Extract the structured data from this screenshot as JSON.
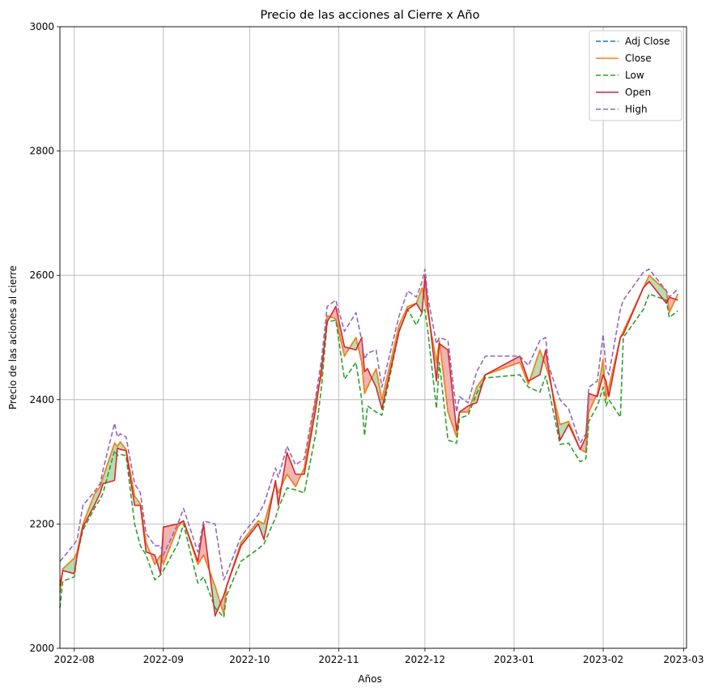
{
  "chart_data": {
    "type": "line",
    "title": "Precio de las acciones al Cierre x Año",
    "xlabel": "Años",
    "ylabel": "Precio de las aciones al cierre",
    "ylim": [
      2000,
      3000
    ],
    "xlim": [
      "2022-07-27",
      "2023-03-02"
    ],
    "yticks": [
      2000,
      2200,
      2400,
      2600,
      2800,
      3000
    ],
    "xticks": [
      "2022-08",
      "2022-09",
      "2022-10",
      "2022-11",
      "2022-12",
      "2023-01",
      "2023-02",
      "2023-03"
    ],
    "xtick_dates": [
      "2022-08-01",
      "2022-09-01",
      "2022-10-01",
      "2022-11-01",
      "2022-12-01",
      "2023-01-01",
      "2023-02-01",
      "2023-03-01"
    ],
    "grid": true,
    "legend_position": "top-right",
    "fill_between": {
      "between": [
        "Close",
        "Open"
      ],
      "up_color": "#2ca02c",
      "down_color": "#d62728"
    },
    "dates": [
      "2022-07-27",
      "2022-07-28",
      "2022-08-01",
      "2022-08-02",
      "2022-08-04",
      "2022-08-08",
      "2022-08-10",
      "2022-08-11",
      "2022-08-15",
      "2022-08-16",
      "2022-08-17",
      "2022-08-19",
      "2022-08-22",
      "2022-08-24",
      "2022-08-26",
      "2022-08-29",
      "2022-08-31",
      "2022-09-01",
      "2022-09-06",
      "2022-09-08",
      "2022-09-13",
      "2022-09-15",
      "2022-09-19",
      "2022-09-22",
      "2022-09-23",
      "2022-09-28",
      "2022-10-04",
      "2022-10-06",
      "2022-10-10",
      "2022-10-11",
      "2022-10-14",
      "2022-10-17",
      "2022-10-20",
      "2022-10-24",
      "2022-10-26",
      "2022-10-28",
      "2022-10-31",
      "2022-11-03",
      "2022-11-07",
      "2022-11-09",
      "2022-11-10",
      "2022-11-11",
      "2022-11-14",
      "2022-11-16",
      "2022-11-22",
      "2022-11-25",
      "2022-11-28",
      "2022-11-30",
      "2022-12-01",
      "2022-12-02",
      "2022-12-05",
      "2022-12-06",
      "2022-12-09",
      "2022-12-12",
      "2022-12-13",
      "2022-12-16",
      "2022-12-19",
      "2022-12-22",
      "2023-01-03",
      "2023-01-06",
      "2023-01-10",
      "2023-01-12",
      "2023-01-13",
      "2023-01-17",
      "2023-01-20",
      "2023-01-24",
      "2023-01-26",
      "2023-01-27",
      "2023-01-30",
      "2023-02-01",
      "2023-02-02",
      "2023-02-03",
      "2023-02-07",
      "2023-02-08",
      "2023-02-15",
      "2023-02-17",
      "2023-02-23",
      "2023-02-24",
      "2023-02-27"
    ],
    "series": [
      {
        "name": "Adj Close",
        "color": "#1f77b4",
        "dashed": true,
        "values": [
          2090,
          2128,
          2145,
          2155,
          2200,
          2248,
          2260,
          2275,
          2330,
          2325,
          2332,
          2320,
          2245,
          2232,
          2170,
          2135,
          2150,
          2135,
          2195,
          2205,
          2135,
          2150,
          2100,
          2055,
          2100,
          2170,
          2205,
          2200,
          2265,
          2250,
          2280,
          2260,
          2290,
          2400,
          2440,
          2535,
          2530,
          2470,
          2500,
          2460,
          2410,
          2420,
          2450,
          2400,
          2520,
          2550,
          2555,
          2580,
          2560,
          2540,
          2460,
          2495,
          2380,
          2340,
          2380,
          2380,
          2420,
          2440,
          2460,
          2425,
          2480,
          2455,
          2440,
          2360,
          2365,
          2320,
          2315,
          2380,
          2410,
          2465,
          2400,
          2420,
          2500,
          2510,
          2580,
          2600,
          2575,
          2540,
          2570
        ]
      },
      {
        "name": "Close",
        "color": "#ff7f0e",
        "dashed": false,
        "values": [
          2090,
          2128,
          2145,
          2155,
          2200,
          2248,
          2260,
          2275,
          2330,
          2325,
          2332,
          2320,
          2245,
          2232,
          2170,
          2135,
          2150,
          2135,
          2195,
          2205,
          2135,
          2150,
          2100,
          2055,
          2100,
          2170,
          2205,
          2200,
          2265,
          2250,
          2280,
          2260,
          2290,
          2400,
          2440,
          2535,
          2530,
          2470,
          2500,
          2460,
          2410,
          2420,
          2450,
          2400,
          2520,
          2550,
          2555,
          2580,
          2560,
          2540,
          2460,
          2495,
          2380,
          2340,
          2380,
          2380,
          2420,
          2440,
          2460,
          2425,
          2480,
          2455,
          2440,
          2360,
          2365,
          2320,
          2315,
          2380,
          2410,
          2465,
          2400,
          2420,
          2500,
          2510,
          2580,
          2600,
          2575,
          2540,
          2570
        ]
      },
      {
        "name": "Low",
        "color": "#2ca02c",
        "dashed": true,
        "values": [
          2065,
          2108,
          2115,
          2150,
          2190,
          2225,
          2240,
          2250,
          2318,
          2310,
          2312,
          2310,
          2200,
          2165,
          2150,
          2110,
          2118,
          2125,
          2168,
          2200,
          2105,
          2115,
          2065,
          2050,
          2085,
          2140,
          2160,
          2168,
          2210,
          2225,
          2258,
          2255,
          2250,
          2345,
          2420,
          2525,
          2528,
          2433,
          2460,
          2400,
          2342,
          2390,
          2380,
          2375,
          2510,
          2545,
          2520,
          2540,
          2545,
          2510,
          2386,
          2460,
          2335,
          2330,
          2370,
          2375,
          2410,
          2435,
          2440,
          2420,
          2412,
          2438,
          2418,
          2328,
          2330,
          2300,
          2305,
          2365,
          2390,
          2420,
          2390,
          2400,
          2372,
          2500,
          2545,
          2570,
          2560,
          2532,
          2543
        ]
      },
      {
        "name": "Open",
        "color": "#d62728",
        "dashed": false,
        "values": [
          2100,
          2125,
          2120,
          2150,
          2195,
          2230,
          2250,
          2265,
          2270,
          2322,
          2320,
          2318,
          2230,
          2230,
          2155,
          2150,
          2120,
          2195,
          2200,
          2205,
          2140,
          2200,
          2052,
          2085,
          2100,
          2165,
          2200,
          2175,
          2270,
          2230,
          2315,
          2280,
          2280,
          2385,
          2450,
          2525,
          2550,
          2485,
          2480,
          2500,
          2445,
          2450,
          2420,
          2385,
          2510,
          2545,
          2555,
          2540,
          2600,
          2550,
          2430,
          2490,
          2480,
          2350,
          2380,
          2390,
          2395,
          2440,
          2470,
          2430,
          2440,
          2480,
          2450,
          2335,
          2360,
          2320,
          2340,
          2410,
          2405,
          2440,
          2430,
          2405,
          2500,
          2505,
          2580,
          2590,
          2555,
          2565,
          2560
        ]
      },
      {
        "name": "High",
        "color": "#9467bd",
        "dashed": true,
        "values": [
          2140,
          2145,
          2168,
          2175,
          2230,
          2252,
          2265,
          2287,
          2362,
          2340,
          2345,
          2340,
          2265,
          2250,
          2185,
          2165,
          2165,
          2150,
          2200,
          2225,
          2155,
          2205,
          2200,
          2110,
          2120,
          2180,
          2215,
          2232,
          2290,
          2275,
          2325,
          2295,
          2305,
          2405,
          2465,
          2550,
          2560,
          2510,
          2540,
          2495,
          2465,
          2475,
          2480,
          2420,
          2535,
          2575,
          2565,
          2590,
          2610,
          2565,
          2490,
          2500,
          2495,
          2380,
          2405,
          2395,
          2445,
          2470,
          2470,
          2455,
          2495,
          2500,
          2455,
          2400,
          2385,
          2330,
          2345,
          2420,
          2430,
          2505,
          2450,
          2440,
          2545,
          2560,
          2605,
          2610,
          2575,
          2565,
          2578
        ]
      }
    ]
  }
}
